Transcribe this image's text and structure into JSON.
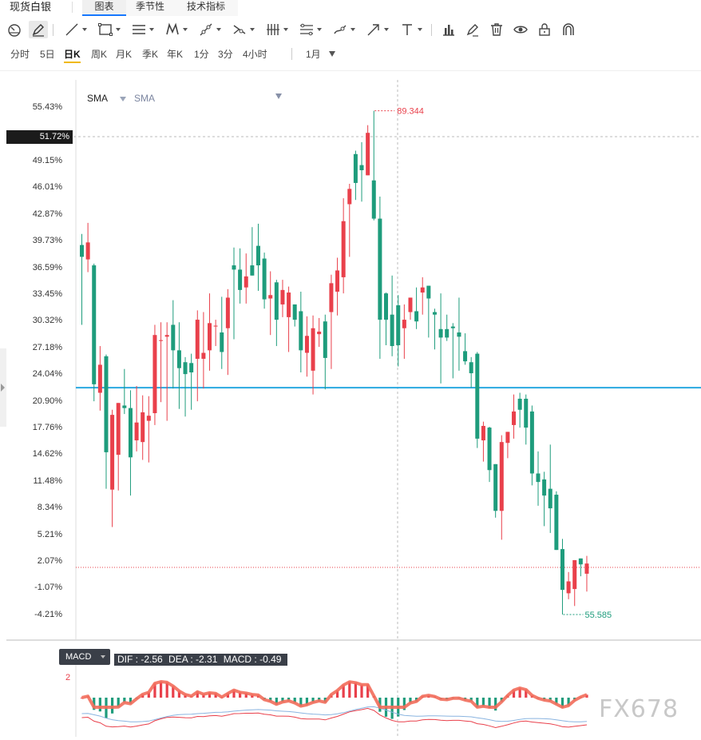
{
  "tabbar": {
    "title": "现货白银",
    "tabs": [
      {
        "label": "图表",
        "active": true
      },
      {
        "label": "季节性",
        "active": false
      },
      {
        "label": "技术指标",
        "active": false
      }
    ]
  },
  "drawing_tools": [
    "meter-icon",
    "brush-icon",
    "line-icon",
    "rectangle-icon",
    "parallel-lines-icon",
    "zigzag-icon",
    "ray-icon",
    "cross-icon",
    "vertical-lines-icon",
    "fibonacci-icon",
    "pen-icon",
    "arrow-icon",
    "text-icon",
    "bar-chart-icon",
    "eraser-icon",
    "trash-icon",
    "eye-icon",
    "lock-icon",
    "magnet-icon"
  ],
  "periods": [
    "分时",
    "5日",
    "日K",
    "周K",
    "月K",
    "季K",
    "年K",
    "1分",
    "3分",
    "4小时"
  ],
  "active_period": "日K",
  "range_select": "1月",
  "legend": {
    "primary": "SMA",
    "secondary": "SMA"
  },
  "y_axis_ticks": [
    "55.43%",
    "51.72%",
    "49.15%",
    "46.01%",
    "42.87%",
    "39.73%",
    "36.59%",
    "33.45%",
    "30.32%",
    "27.18%",
    "24.04%",
    "20.90%",
    "17.76%",
    "14.62%",
    "11.48%",
    "8.34%",
    "5.21%",
    "2.07%",
    "-1.07%",
    "-4.21%"
  ],
  "highlighted_tick": "51.72%",
  "high_label": "89.344",
  "low_label": "55.585",
  "macd": {
    "tab_label": "MACD",
    "dif": "DIF : -2.56",
    "dea": "DEA : -2.31",
    "macd": "MACD : -0.49",
    "axis_label": "2"
  },
  "watermark": "FX678",
  "colors": {
    "up": "#e9404b",
    "down": "#1e9c7c",
    "hline": "#29a8e0",
    "accent": "#1677ff",
    "active_period": "#f0b90b"
  },
  "chart_data": {
    "type": "candlestick",
    "y_axis": "percent change",
    "ylim": [
      -5.5,
      57.0
    ],
    "high_marker": 89.344,
    "low_marker": 55.585,
    "horizontal_level_pct": 22.4,
    "candles": [
      [
        39.2,
        37.8,
        40.5,
        29.8
      ],
      [
        37.5,
        39.5,
        41.8,
        36.0
      ],
      [
        36.8,
        22.8,
        37.0,
        20.8
      ],
      [
        21.8,
        25.1,
        27.3,
        19.7
      ],
      [
        26.1,
        14.8,
        26.3,
        10.5
      ],
      [
        10.4,
        19.2,
        19.8,
        6.0
      ],
      [
        14.5,
        20.6,
        20.2,
        10.3
      ],
      [
        20.3,
        20.0,
        24.6,
        19.3
      ],
      [
        20.0,
        14.2,
        22.1,
        9.7
      ],
      [
        16.2,
        18.3,
        22.6,
        14.9
      ],
      [
        16.0,
        19.5,
        21.5,
        13.9
      ],
      [
        18.5,
        19.1,
        21.4,
        13.6
      ],
      [
        19.4,
        28.6,
        29.8,
        18.0
      ],
      [
        27.9,
        28.0,
        30.1,
        20.7
      ],
      [
        28.4,
        28.6,
        30.1,
        18.5
      ],
      [
        29.8,
        26.8,
        32.7,
        22.3
      ],
      [
        26.8,
        24.7,
        30.1,
        19.9
      ],
      [
        25.4,
        24.0,
        26.0,
        19.0
      ],
      [
        25.3,
        24.2,
        26.4,
        19.8
      ],
      [
        25.8,
        30.4,
        31.5,
        20.8
      ],
      [
        25.8,
        26.5,
        31.3,
        22.3
      ],
      [
        26.8,
        30.0,
        33.5,
        24.4
      ],
      [
        29.6,
        29.7,
        30.4,
        27.3
      ],
      [
        28.9,
        26.6,
        33.1,
        24.6
      ],
      [
        29.4,
        33.0,
        34.0,
        23.9
      ],
      [
        36.8,
        36.3,
        38.9,
        28.1
      ],
      [
        36.3,
        33.9,
        38.8,
        32.3
      ],
      [
        34.2,
        35.5,
        38.2,
        32.3
      ],
      [
        36.8,
        35.6,
        41.3,
        35.6
      ],
      [
        39.1,
        36.8,
        41.7,
        33.8
      ],
      [
        37.6,
        32.8,
        38.3,
        31.7
      ],
      [
        32.9,
        33.3,
        36.1,
        28.6
      ],
      [
        34.8,
        30.4,
        35.1,
        27.3
      ],
      [
        32.2,
        33.9,
        35.1,
        30.7
      ],
      [
        30.7,
        33.6,
        34.3,
        26.6
      ],
      [
        32.2,
        30.4,
        32.2,
        29.6
      ],
      [
        31.4,
        26.8,
        33.7,
        24.2
      ],
      [
        26.5,
        28.5,
        30.8,
        23.7
      ],
      [
        24.4,
        29.4,
        30.9,
        21.6
      ],
      [
        28.7,
        29.0,
        30.6,
        27.2
      ],
      [
        30.2,
        25.9,
        31.0,
        22.2
      ],
      [
        31.3,
        34.7,
        35.7,
        24.6
      ],
      [
        33.7,
        36.2,
        37.7,
        30.9
      ],
      [
        35.4,
        42.0,
        44.7,
        33.5
      ],
      [
        44.0,
        45.8,
        46.4,
        37.8
      ],
      [
        49.9,
        46.5,
        50.3,
        44.5
      ],
      [
        48.6,
        48.0,
        51.3,
        44.3
      ],
      [
        47.4,
        52.4,
        53.3,
        48.6
      ],
      [
        46.8,
        42.3,
        55.0,
        42.1
      ],
      [
        42.3,
        30.4,
        44.9,
        25.8
      ],
      [
        33.5,
        30.4,
        33.6,
        27.4
      ],
      [
        31.0,
        27.3,
        35.6,
        26.1
      ],
      [
        32.1,
        27.4,
        33.3,
        24.9
      ],
      [
        29.4,
        30.4,
        32.2,
        25.8
      ],
      [
        31.3,
        33.0,
        31.2,
        30.4
      ],
      [
        31.4,
        30.2,
        34.2,
        29.3
      ],
      [
        33.6,
        34.2,
        35.4,
        31.0
      ],
      [
        34.4,
        32.9,
        34.4,
        28.3
      ],
      [
        31.3,
        31.0,
        31.7,
        26.9
      ],
      [
        29.3,
        28.3,
        33.5,
        22.9
      ],
      [
        29.3,
        28.3,
        31.0,
        27.9
      ],
      [
        29.6,
        29.4,
        30.0,
        23.5
      ],
      [
        28.9,
        28.4,
        33.0,
        24.4
      ],
      [
        26.7,
        25.5,
        28.8,
        25.1
      ],
      [
        25.4,
        24.1,
        26.0,
        22.4
      ],
      [
        26.4,
        16.4,
        26.6,
        15.3
      ],
      [
        16.2,
        17.9,
        18.4,
        13.7
      ],
      [
        17.7,
        12.7,
        17.8,
        11.3
      ],
      [
        13.4,
        7.9,
        13.4,
        7.1
      ],
      [
        7.9,
        16.0,
        16.8,
        4.5
      ],
      [
        15.9,
        17.2,
        16.8,
        14.1
      ],
      [
        18.0,
        19.6,
        21.6,
        16.4
      ],
      [
        21.1,
        19.8,
        21.8,
        17.7
      ],
      [
        21.1,
        17.7,
        21.6,
        15.7
      ],
      [
        19.6,
        12.3,
        20.3,
        10.9
      ],
      [
        12.3,
        11.3,
        14.9,
        8.5
      ],
      [
        11.6,
        9.7,
        12.5,
        6.1
      ],
      [
        10.5,
        8.2,
        15.7,
        5.3
      ],
      [
        9.8,
        3.3,
        10.2,
        3.3
      ],
      [
        3.4,
        -1.4,
        4.6,
        -4.3
      ],
      [
        -1.8,
        -0.4,
        0.7,
        -2.5
      ],
      [
        -1.3,
        2.1,
        1.9,
        -3.3
      ],
      [
        2.3,
        1.6,
        2.1,
        0.2
      ],
      [
        0.5,
        1.7,
        2.6,
        -1.6
      ]
    ],
    "macd_hist_color_pattern": "green, then red hump, green dip, red hump, green tail"
  }
}
